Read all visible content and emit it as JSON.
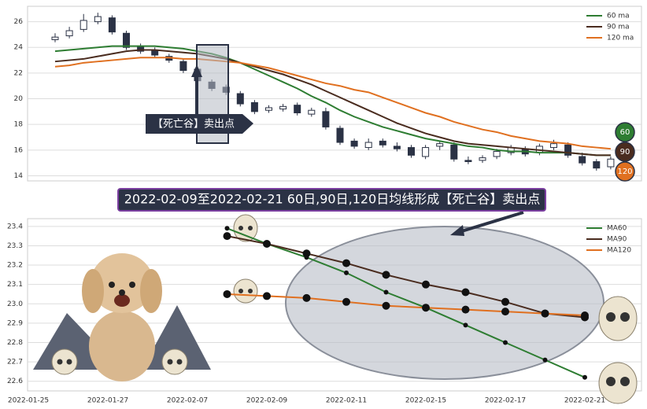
{
  "chart_data": [
    {
      "type": "candlestick",
      "annotation": "【死亡谷】卖出点",
      "categories": [
        null,
        null,
        null,
        null,
        null,
        null,
        null,
        null,
        null,
        null,
        null,
        null,
        null,
        null,
        null,
        null,
        null,
        null,
        null,
        null,
        null,
        null,
        null,
        null,
        null,
        null,
        null,
        null,
        null,
        null,
        null,
        null,
        null,
        null,
        null,
        null,
        null,
        null,
        null,
        null
      ],
      "open": [
        24.6,
        24.9,
        25.4,
        26.0,
        26.3,
        25.1,
        24.1,
        23.8,
        23.3,
        22.9,
        22.3,
        21.3,
        20.9,
        20.4,
        19.7,
        19.1,
        19.2,
        19.5,
        18.8,
        19.0,
        17.7,
        16.7,
        16.2,
        16.7,
        16.3,
        16.2,
        15.5,
        16.3,
        16.4,
        15.2,
        15.2,
        15.5,
        15.8,
        16.1,
        15.8,
        16.2,
        16.4,
        15.5,
        15.1,
        14.7
      ],
      "close": [
        24.8,
        25.3,
        26.1,
        26.4,
        25.2,
        24.0,
        23.7,
        23.4,
        23.0,
        22.2,
        21.4,
        20.8,
        20.5,
        19.6,
        19.0,
        19.3,
        19.4,
        18.9,
        19.1,
        17.8,
        16.6,
        16.3,
        16.6,
        16.4,
        16.1,
        15.6,
        16.2,
        16.5,
        15.3,
        15.1,
        15.4,
        15.9,
        16.2,
        15.7,
        16.3,
        16.5,
        15.6,
        15.0,
        14.6,
        15.3
      ],
      "high": [
        25.1,
        25.6,
        26.6,
        26.7,
        26.5,
        25.3,
        24.3,
        24.0,
        23.5,
        23.1,
        22.5,
        21.5,
        21.1,
        20.6,
        19.9,
        19.5,
        19.6,
        19.7,
        19.3,
        19.3,
        17.9,
        16.9,
        16.9,
        16.9,
        16.6,
        16.4,
        16.4,
        16.7,
        16.6,
        15.5,
        15.6,
        16.1,
        16.4,
        16.3,
        16.5,
        16.8,
        16.6,
        15.8,
        15.3,
        15.5
      ],
      "low": [
        24.4,
        24.7,
        25.2,
        25.8,
        25.0,
        23.8,
        23.5,
        23.2,
        22.8,
        22.0,
        21.2,
        20.6,
        20.3,
        19.4,
        18.8,
        18.9,
        19.0,
        18.7,
        18.6,
        17.6,
        16.4,
        16.1,
        16.0,
        16.2,
        15.9,
        15.4,
        15.3,
        16.0,
        15.1,
        14.9,
        15.0,
        15.3,
        15.6,
        15.5,
        15.6,
        16.0,
        15.4,
        14.8,
        14.4,
        14.5
      ],
      "candle_color": "#2b3245",
      "series": [
        {
          "name": "60 ma",
          "end_label": "60",
          "color": "#2e7d32",
          "values": [
            23.7,
            23.8,
            23.9,
            24.0,
            24.1,
            24.1,
            24.1,
            24.1,
            24.0,
            23.9,
            23.7,
            23.5,
            23.2,
            22.8,
            22.3,
            21.8,
            21.3,
            20.8,
            20.2,
            19.7,
            19.1,
            18.6,
            18.2,
            17.8,
            17.5,
            17.2,
            16.9,
            16.7,
            16.5,
            16.3,
            16.2,
            16.0,
            15.9,
            15.9,
            15.8,
            15.8,
            15.8,
            15.7,
            15.6,
            15.6
          ]
        },
        {
          "name": "90 ma",
          "end_label": "90",
          "color": "#4a2c1f",
          "values": [
            22.9,
            23.0,
            23.1,
            23.3,
            23.5,
            23.7,
            23.8,
            23.8,
            23.7,
            23.6,
            23.5,
            23.3,
            23.1,
            22.8,
            22.5,
            22.2,
            21.9,
            21.5,
            21.1,
            20.6,
            20.1,
            19.6,
            19.1,
            18.6,
            18.1,
            17.7,
            17.3,
            17.0,
            16.7,
            16.5,
            16.4,
            16.3,
            16.2,
            16.1,
            16.0,
            15.9,
            15.8,
            15.7,
            15.6,
            15.6
          ]
        },
        {
          "name": "120 ma",
          "end_label": "120",
          "color": "#e07020",
          "values": [
            22.5,
            22.6,
            22.8,
            22.9,
            23.0,
            23.1,
            23.2,
            23.2,
            23.2,
            23.1,
            23.1,
            23.0,
            22.9,
            22.8,
            22.6,
            22.4,
            22.1,
            21.8,
            21.5,
            21.2,
            21.0,
            20.7,
            20.5,
            20.1,
            19.7,
            19.3,
            18.9,
            18.6,
            18.2,
            17.9,
            17.6,
            17.4,
            17.1,
            16.9,
            16.7,
            16.6,
            16.5,
            16.3,
            16.2,
            16.1
          ]
        }
      ],
      "ylim": [
        13.6,
        27.2
      ],
      "yticks": [
        14,
        16,
        18,
        20,
        22,
        24,
        26
      ],
      "grid": true,
      "legend": "upper right"
    },
    {
      "type": "line",
      "title": "2022-02-09至2022-02-21 60日,90日,120日均线形成【死亡谷】卖出点",
      "categories": [
        "2022-01-25",
        null,
        "2022-01-27",
        null,
        "2022-02-07",
        null,
        "2022-02-09",
        null,
        "2022-02-11",
        null,
        "2022-02-15",
        null,
        "2022-02-17",
        null,
        "2022-02-21",
        null
      ],
      "series": [
        {
          "name": "MA60",
          "color": "#2e7d32",
          "values": [
            null,
            null,
            null,
            null,
            null,
            23.39,
            23.31,
            23.24,
            23.16,
            23.06,
            22.98,
            22.89,
            22.8,
            22.71,
            22.62,
            null
          ]
        },
        {
          "name": "MA90",
          "color": "#4a2c1f",
          "values": [
            null,
            null,
            null,
            null,
            null,
            23.35,
            23.31,
            23.26,
            23.21,
            23.15,
            23.1,
            23.06,
            23.01,
            22.95,
            22.93,
            null
          ]
        },
        {
          "name": "MA120",
          "color": "#e07020",
          "values": [
            null,
            null,
            null,
            null,
            null,
            23.05,
            23.04,
            23.03,
            23.01,
            22.99,
            22.98,
            22.97,
            22.96,
            22.95,
            22.94,
            null
          ]
        }
      ],
      "ylim": [
        22.55,
        23.44
      ],
      "yticks": [
        22.6,
        22.7,
        22.8,
        22.9,
        {
          "value": 23,
          "label": "23.0"
        },
        23.1,
        23.2,
        23.3,
        23.4
      ],
      "grid": true,
      "legend": "upper right"
    }
  ]
}
